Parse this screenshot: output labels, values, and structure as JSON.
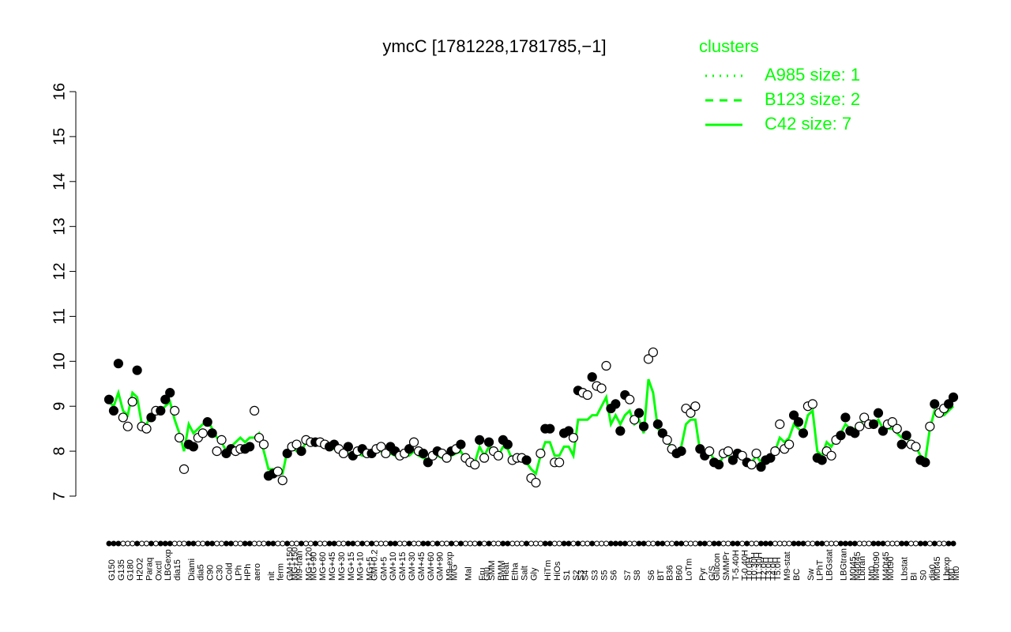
{
  "chart_data": {
    "type": "scatter",
    "title": "ymcC [1781228,1781785,−1]",
    "ylim": [
      7,
      16
    ],
    "yticks": [
      7,
      8,
      9,
      10,
      11,
      12,
      13,
      14,
      15,
      16
    ],
    "categories": [
      "G150",
      null,
      "G135",
      null,
      "G180",
      null,
      "H2O2",
      null,
      "Paraq",
      null,
      "Oxctl",
      null,
      "LBGexp",
      null,
      "dia15",
      null,
      null,
      "Diami",
      null,
      "dia5",
      null,
      "C90",
      null,
      "C30",
      null,
      "Cold",
      null,
      "LPh",
      null,
      "HPh",
      null,
      "aero",
      null,
      null,
      "nit",
      null,
      "ferm",
      null,
      "GM+150",
      "MG+150",
      "M9-tran",
      null,
      "MG+120",
      "MG+90",
      null,
      "MG+60",
      null,
      "MG+45",
      null,
      "MG+30",
      null,
      "MG+15",
      null,
      "MG+10",
      null,
      "MG+5",
      "GM+0.2",
      null,
      "GM+5",
      null,
      "GM+10",
      null,
      "GM+15",
      null,
      "GM+30",
      null,
      "GM+45",
      null,
      "GM+60",
      null,
      "GM+90",
      null,
      "M9-exp",
      "M/G",
      null,
      null,
      "Mal",
      null,
      null,
      "Fru",
      "Glu",
      "SMM",
      null,
      "BMM",
      "Heat",
      null,
      "Etha",
      null,
      "Salt",
      null,
      "Gly",
      null,
      null,
      "HiTm",
      null,
      "HiOs",
      null,
      "S1",
      null,
      "S2",
      "S3",
      "S4",
      null,
      "S3",
      null,
      "S5",
      null,
      "S6",
      null,
      null,
      "S7",
      null,
      "S8",
      null,
      null,
      "S6",
      null,
      "BT",
      null,
      "B36",
      null,
      "B60",
      null,
      "LoTm",
      null,
      null,
      "Pyr",
      null,
      "G/S",
      "Glucon",
      null,
      "SMMPr",
      null,
      "T-5.40H",
      null,
      "T-0.40H",
      "T0.0H",
      "T0.30H",
      "T1.30H",
      "T2.0H",
      "T3.0H",
      "T4.0H",
      "T5.0H",
      null,
      "M9-stat",
      null,
      "BC",
      null,
      null,
      "Sw",
      null,
      "LPhT",
      null,
      "LBGstat",
      null,
      null,
      "LBGtran",
      null,
      "M0t45",
      "M40t45",
      "Lbtran",
      null,
      "Mt0",
      "M40t90",
      null,
      "M40t45",
      "M0t90",
      null,
      null,
      "Lbstat",
      null,
      "BI",
      null,
      "S0",
      null,
      "dia0",
      "M0t45",
      null,
      "Lbexp",
      "M0",
      "Mt0"
    ],
    "points": {
      "color": "#000000",
      "open_color": "#ffffff",
      "values": [
        9.15,
        8.9,
        9.95,
        8.75,
        8.55,
        9.1,
        9.8,
        8.55,
        8.5,
        8.75,
        8.9,
        8.9,
        9.15,
        9.3,
        8.9,
        8.3,
        7.6,
        8.15,
        8.1,
        8.3,
        8.4,
        8.65,
        8.4,
        8.0,
        8.25,
        7.95,
        8.05,
        8.0,
        8.05,
        8.05,
        8.1,
        8.9,
        8.3,
        8.15,
        7.45,
        7.5,
        7.55,
        7.35,
        7.95,
        8.1,
        8.15,
        8.0,
        8.25,
        8.2,
        8.2,
        8.2,
        8.15,
        8.1,
        8.15,
        8.05,
        7.95,
        8.1,
        7.9,
        8.0,
        8.05,
        7.95,
        7.95,
        8.05,
        8.1,
        7.95,
        8.1,
        8.0,
        7.9,
        7.95,
        8.05,
        8.2,
        8.0,
        7.95,
        7.75,
        7.9,
        8.0,
        7.95,
        7.85,
        8.0,
        8.05,
        8.15,
        7.85,
        7.75,
        7.7,
        8.25,
        7.85,
        8.2,
        8.0,
        7.9,
        8.25,
        8.15,
        7.8,
        7.85,
        7.85,
        7.8,
        7.4,
        7.3,
        7.95,
        8.5,
        8.5,
        7.75,
        7.75,
        8.4,
        8.45,
        8.3,
        9.35,
        9.3,
        9.25,
        9.65,
        9.45,
        9.4,
        9.9,
        8.95,
        9.05,
        8.45,
        9.25,
        9.15,
        8.7,
        8.85,
        8.55,
        10.05,
        10.2,
        8.6,
        8.4,
        8.25,
        8.05,
        7.95,
        8.0,
        8.95,
        8.85,
        9.0,
        8.05,
        7.9,
        8.0,
        7.75,
        7.7,
        7.95,
        8.0,
        7.8,
        7.95,
        7.9,
        7.75,
        7.7,
        7.95,
        7.65,
        7.8,
        7.85,
        8.0,
        8.6,
        8.05,
        8.15,
        8.8,
        8.65,
        8.4,
        9.0,
        9.05,
        7.85,
        7.8,
        8.0,
        7.9,
        8.25,
        8.35,
        8.75,
        8.45,
        8.4,
        8.55,
        8.75,
        8.6,
        8.6,
        8.85,
        8.45,
        8.6,
        8.65,
        8.5,
        8.15,
        8.35,
        8.15,
        8.1,
        7.8,
        7.75,
        8.55,
        9.05,
        8.85,
        8.95,
        9.05,
        9.2
      ],
      "filled": [
        true,
        true,
        true,
        false,
        false,
        false,
        true,
        false,
        false,
        true,
        false,
        true,
        true,
        true,
        false,
        false,
        false,
        true,
        true,
        false,
        false,
        true,
        true,
        false,
        false,
        true,
        true,
        false,
        false,
        true,
        true,
        false,
        false,
        false,
        true,
        true,
        false,
        false,
        true,
        false,
        false,
        true,
        false,
        false,
        true,
        false,
        false,
        true,
        true,
        false,
        false,
        true,
        true,
        false,
        true,
        false,
        true,
        false,
        false,
        false,
        true,
        true,
        false,
        false,
        true,
        false,
        false,
        true,
        true,
        false,
        true,
        false,
        false,
        true,
        false,
        true,
        false,
        false,
        false,
        true,
        false,
        true,
        false,
        false,
        true,
        true,
        false,
        false,
        false,
        true,
        false,
        false,
        false,
        true,
        true,
        false,
        false,
        true,
        true,
        false,
        true,
        false,
        false,
        true,
        false,
        false,
        false,
        true,
        true,
        true,
        true,
        false,
        false,
        true,
        true,
        false,
        false,
        true,
        true,
        false,
        false,
        true,
        true,
        false,
        false,
        false,
        true,
        true,
        false,
        true,
        true,
        false,
        false,
        true,
        true,
        false,
        true,
        false,
        false,
        true,
        true,
        true,
        false,
        false,
        false,
        false,
        true,
        true,
        true,
        false,
        false,
        true,
        true,
        false,
        false,
        false,
        true,
        true,
        true,
        true,
        false,
        false,
        false,
        true,
        true,
        true,
        false,
        false,
        false,
        true,
        true,
        false,
        false,
        true,
        true,
        false,
        true,
        false,
        false,
        true,
        true
      ]
    },
    "legend": {
      "title": "clusters",
      "position": "top-right",
      "color": "#00ff00"
    },
    "series": [
      {
        "name": "A985 size: 1",
        "color": "#00ff00",
        "dash": "dotted"
      },
      {
        "name": "B123 size: 2",
        "color": "#00ff00",
        "dash": "dashed"
      },
      {
        "name": "C42 size: 7",
        "color": "#00ff00",
        "dash": "solid",
        "values": [
          9.1,
          9.0,
          9.3,
          8.9,
          8.8,
          9.3,
          9.2,
          8.6,
          8.6,
          8.8,
          8.9,
          8.9,
          9.0,
          9.1,
          8.7,
          8.4,
          8.0,
          8.6,
          8.4,
          8.5,
          8.6,
          8.7,
          8.5,
          8.3,
          8.2,
          8.0,
          8.1,
          8.2,
          8.3,
          8.2,
          8.3,
          8.3,
          8.4,
          8.0,
          7.6,
          7.6,
          7.5,
          7.5,
          8.0,
          8.1,
          8.0,
          8.0,
          8.2,
          8.2,
          8.15,
          8.15,
          8.1,
          8.1,
          8.05,
          8.0,
          8.0,
          7.95,
          7.9,
          7.95,
          7.9,
          7.9,
          7.9,
          8.0,
          8.0,
          7.9,
          7.95,
          7.9,
          7.85,
          7.9,
          7.9,
          8.0,
          7.9,
          7.85,
          7.8,
          7.85,
          7.9,
          7.85,
          7.8,
          7.9,
          7.95,
          8.0,
          7.8,
          7.75,
          7.75,
          8.1,
          7.9,
          8.1,
          8.0,
          7.9,
          8.1,
          8.05,
          7.8,
          7.8,
          7.8,
          7.75,
          7.6,
          7.5,
          7.9,
          8.2,
          8.2,
          7.9,
          7.9,
          8.1,
          8.1,
          7.9,
          8.7,
          8.7,
          8.7,
          8.8,
          8.8,
          9.0,
          9.2,
          8.6,
          8.8,
          8.6,
          8.8,
          8.9,
          8.6,
          8.7,
          8.4,
          9.6,
          9.3,
          8.5,
          8.4,
          8.2,
          8.1,
          8.0,
          8.1,
          8.6,
          8.7,
          8.7,
          8.0,
          7.9,
          8.0,
          7.8,
          7.7,
          7.9,
          7.9,
          7.8,
          7.9,
          7.85,
          7.8,
          7.75,
          7.9,
          7.75,
          7.85,
          7.9,
          8.0,
          8.3,
          8.2,
          8.3,
          8.6,
          8.5,
          8.4,
          8.8,
          8.9,
          8.0,
          7.9,
          8.2,
          8.1,
          8.3,
          8.4,
          8.6,
          8.5,
          8.5,
          8.6,
          8.7,
          8.6,
          8.6,
          8.7,
          8.5,
          8.5,
          8.5,
          8.4,
          8.3,
          8.3,
          8.2,
          8.1,
          7.9,
          7.8,
          8.5,
          8.9,
          8.8,
          8.8,
          8.9,
          9.0
        ]
      }
    ]
  }
}
